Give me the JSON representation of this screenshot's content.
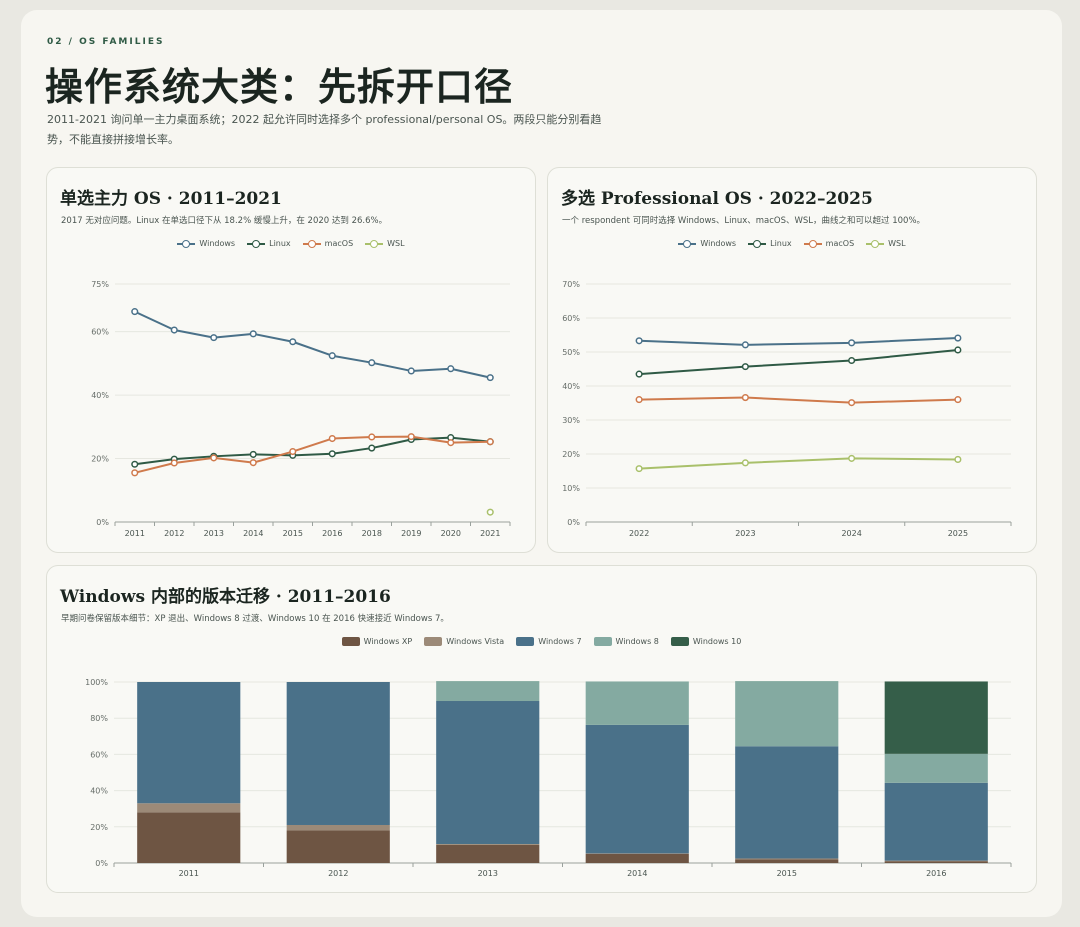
{
  "header": {
    "kicker": "02 / OS FAMILIES",
    "title": "操作系统大类：先拆开口径",
    "description": "2011-2021 询问单一主力桌面系统；2022 起允许同时选择多个 professional/personal OS。两段只能分别看趋势，不能直接拼接增长率。"
  },
  "colors": {
    "Windows": "#4a7189",
    "Linux": "#2f5a45",
    "macOS": "#cf7a4c",
    "WSL": "#a9c06a",
    "Windows XP": "#6e5543",
    "Windows Vista": "#9c8a78",
    "Windows 7": "#4a7189",
    "Windows 8": "#84aaa1",
    "Windows 10": "#355e49"
  },
  "panels": {
    "single": {
      "title": "单选主力 OS · 2011–2021",
      "subtitle": "2017 无对应问题。Linux 在单选口径下从 18.2% 缓慢上升，在 2020 达到 26.6%。"
    },
    "multi": {
      "title": "多选 Professional OS · 2022–2025",
      "subtitle": "一个 respondent 可同时选择 Windows、Linux、macOS、WSL，曲线之和可以超过 100%。"
    },
    "versions": {
      "title": "Windows 内部的版本迁移 · 2011–2016",
      "subtitle": "早期问卷保留版本细节：XP 退出、Windows 8 过渡、Windows 10 在 2016 快速接近 Windows 7。"
    }
  },
  "chart_data": [
    {
      "type": "line",
      "title": "单选主力 OS · 2011–2021",
      "x": [
        "2011",
        "2012",
        "2013",
        "2014",
        "2015",
        "2016",
        "2018",
        "2019",
        "2020",
        "2021"
      ],
      "series": [
        {
          "name": "Windows",
          "values": [
            66.3,
            60.5,
            58.1,
            59.3,
            56.8,
            52.4,
            50.2,
            47.6,
            48.3,
            45.5
          ]
        },
        {
          "name": "Linux",
          "values": [
            18.2,
            19.8,
            20.7,
            21.3,
            21.0,
            21.5,
            23.3,
            26.0,
            26.6,
            25.3
          ]
        },
        {
          "name": "macOS",
          "values": [
            15.5,
            18.6,
            20.2,
            18.7,
            22.2,
            26.3,
            26.8,
            26.9,
            25.0,
            25.3
          ]
        },
        {
          "name": "WSL",
          "values": [
            null,
            null,
            null,
            null,
            null,
            null,
            null,
            null,
            null,
            3.1
          ]
        }
      ],
      "yticks": [
        "0%",
        "20%",
        "40%",
        "60%",
        "75%"
      ],
      "ytick_values": [
        0,
        20,
        40,
        60,
        75
      ],
      "ylim": [
        0,
        75
      ],
      "grid": true,
      "legend": "top-center"
    },
    {
      "type": "line",
      "title": "多选 Professional OS · 2022–2025",
      "x": [
        "2022",
        "2023",
        "2024",
        "2025"
      ],
      "series": [
        {
          "name": "Windows",
          "values": [
            53.3,
            52.1,
            52.7,
            54.1
          ]
        },
        {
          "name": "Linux",
          "values": [
            43.5,
            45.7,
            47.5,
            50.6
          ]
        },
        {
          "name": "macOS",
          "values": [
            36.0,
            36.6,
            35.1,
            36.0
          ]
        },
        {
          "name": "WSL",
          "values": [
            15.7,
            17.4,
            18.7,
            18.4
          ]
        }
      ],
      "yticks": [
        "0%",
        "10%",
        "20%",
        "30%",
        "40%",
        "50%",
        "60%",
        "70%"
      ],
      "ytick_values": [
        0,
        10,
        20,
        30,
        40,
        50,
        60,
        70
      ],
      "ylim": [
        0,
        70
      ],
      "grid": true,
      "legend": "top-center"
    },
    {
      "type": "bar",
      "stacked": true,
      "title": "Windows 内部的版本迁移 · 2011–2016",
      "categories": [
        "2011",
        "2012",
        "2013",
        "2014",
        "2015",
        "2016"
      ],
      "series": [
        {
          "name": "Windows XP",
          "values": [
            28,
            18,
            10,
            5,
            2,
            1
          ]
        },
        {
          "name": "Windows Vista",
          "values": [
            5,
            3,
            0.5,
            0.3,
            0.5,
            0.3
          ]
        },
        {
          "name": "Windows 7",
          "values": [
            67,
            79,
            79,
            71,
            62,
            43
          ]
        },
        {
          "name": "Windows 8",
          "values": [
            0,
            0,
            11,
            24,
            36,
            16
          ]
        },
        {
          "name": "Windows 10",
          "values": [
            0,
            0,
            0,
            0,
            0,
            40
          ]
        }
      ],
      "yticks": [
        "0%",
        "20%",
        "40%",
        "60%",
        "80%",
        "100%"
      ],
      "ytick_values": [
        0,
        20,
        40,
        60,
        80,
        100
      ],
      "ylim": [
        0,
        100
      ],
      "grid": true,
      "legend": "top-center"
    }
  ]
}
